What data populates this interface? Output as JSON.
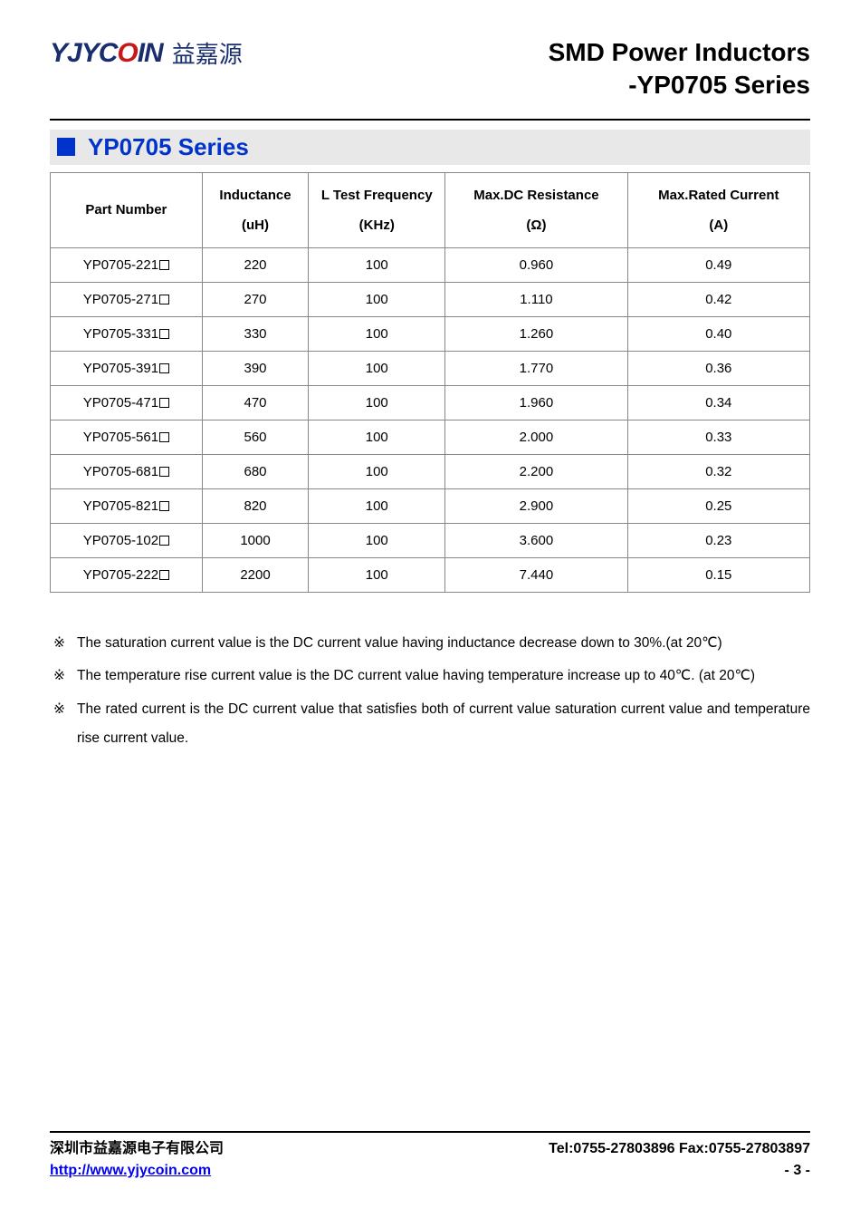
{
  "header": {
    "logo_latin_1": "YJYC",
    "logo_latin_2": "O",
    "logo_latin_3": "IN",
    "logo_cn": "益嘉源",
    "title_line1": "SMD Power Inductors",
    "title_line2": "-YP0705 Series"
  },
  "section": {
    "title": "YP0705 Series",
    "square_color": "#0033cc",
    "title_color": "#0033cc",
    "bar_bg": "#e8e8e8"
  },
  "table": {
    "columns": [
      {
        "label": "Part Number",
        "unit": ""
      },
      {
        "label": "Inductance",
        "unit": "(uH)"
      },
      {
        "label": "L Test Frequency",
        "unit": "(KHz)"
      },
      {
        "label": "Max.DC Resistance",
        "unit": "(Ω)"
      },
      {
        "label": "Max.Rated Current",
        "unit": "(A)"
      }
    ],
    "rows": [
      {
        "pn": "YP0705-221",
        "ind": "220",
        "freq": "100",
        "dcr": "0.960",
        "cur": "0.49"
      },
      {
        "pn": "YP0705-271",
        "ind": "270",
        "freq": "100",
        "dcr": "1.110",
        "cur": "0.42"
      },
      {
        "pn": "YP0705-331",
        "ind": "330",
        "freq": "100",
        "dcr": "1.260",
        "cur": "0.40"
      },
      {
        "pn": "YP0705-391",
        "ind": "390",
        "freq": "100",
        "dcr": "1.770",
        "cur": "0.36"
      },
      {
        "pn": "YP0705-471",
        "ind": "470",
        "freq": "100",
        "dcr": "1.960",
        "cur": "0.34"
      },
      {
        "pn": "YP0705-561",
        "ind": "560",
        "freq": "100",
        "dcr": "2.000",
        "cur": "0.33"
      },
      {
        "pn": "YP0705-681",
        "ind": "680",
        "freq": "100",
        "dcr": "2.200",
        "cur": "0.32"
      },
      {
        "pn": "YP0705-821",
        "ind": "820",
        "freq": "100",
        "dcr": "2.900",
        "cur": "0.25"
      },
      {
        "pn": "YP0705-102",
        "ind": "1000",
        "freq": "100",
        "dcr": "3.600",
        "cur": "0.23"
      },
      {
        "pn": "YP0705-222",
        "ind": "2200",
        "freq": "100",
        "dcr": "7.440",
        "cur": "0.15"
      }
    ],
    "border_color": "#888888",
    "font_size": 15
  },
  "notes": {
    "items": [
      "The saturation current value is the DC current value having inductance decrease down to 30%.(at 20℃)",
      "The temperature rise current value is the DC current value having temperature increase up to 40℃. (at 20℃)",
      "The rated current is the DC current value that satisfies both of current value saturation current value and temperature rise current value."
    ]
  },
  "footer": {
    "company_cn": "深圳市益嘉源电子有限公司",
    "url": "http://www.yjycoin.com",
    "tel_fax": "Tel:0755-27803896   Fax:0755-27803897",
    "page": "- 3 -"
  },
  "colors": {
    "navy": "#1a2e6e",
    "red": "#c61a1a",
    "link": "#0000ee",
    "text": "#000000",
    "bg": "#ffffff"
  }
}
